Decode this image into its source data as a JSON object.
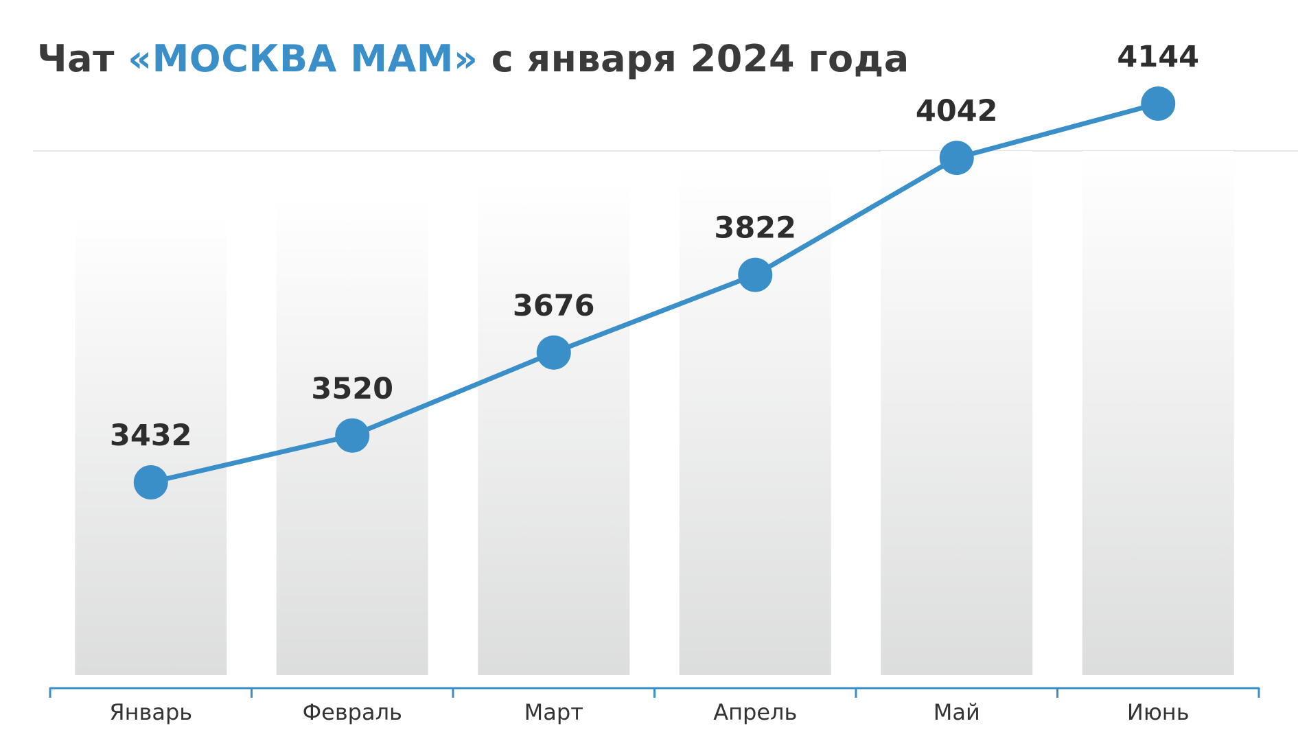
{
  "title": {
    "prefix": "Чат ",
    "highlight": "«МОСКВА МАМ»",
    "suffix": " с января 2024 года"
  },
  "colors": {
    "accent": "#3a8fc8",
    "text": "#3a3a3a",
    "bar_top": "#ffffff",
    "bar_bottom": "#dcdddd",
    "axis": "#3a8fc8",
    "gridline": "#e6e6e6"
  },
  "chart_data": {
    "type": "line",
    "categories": [
      "Январь",
      "Февраль",
      "Март",
      "Апрель",
      "Май",
      "Июнь"
    ],
    "series": [
      {
        "values": [
          3432,
          3520,
          3676,
          3822,
          4042,
          4144
        ]
      }
    ],
    "data_labels": [
      "3432",
      "3520",
      "3676",
      "3822",
      "4042",
      "4144"
    ],
    "background_bars": true,
    "grid": false,
    "legend": "none"
  }
}
